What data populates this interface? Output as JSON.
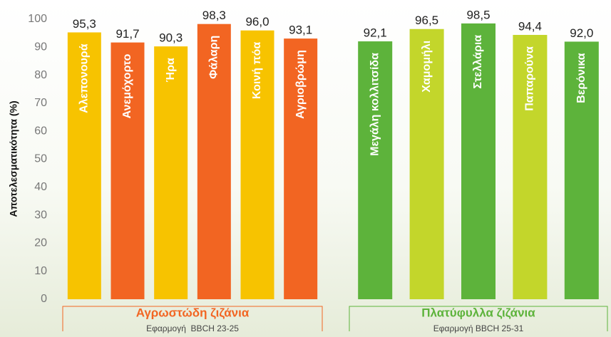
{
  "chart_data": {
    "type": "bar",
    "ylabel": "Αποτελεσματικότητα (%)",
    "ylim": [
      0,
      100
    ],
    "yticks": [
      0,
      10,
      20,
      30,
      40,
      50,
      60,
      70,
      80,
      90,
      100
    ],
    "groups": [
      {
        "title": "Αγρωστώδη ζιζάνια",
        "subtitle": "Εφαρμογή  BBCH 23-25",
        "color": "#f26522",
        "categories": [
          "Αλεπονουρά",
          "Ανεμόχορτο",
          "Ήρα",
          "Φάλαρη",
          "Κοινή πόα",
          "Αγριοβρώμη"
        ],
        "values": [
          95.3,
          91.7,
          90.3,
          98.3,
          96.0,
          93.1
        ],
        "value_labels": [
          "95,3",
          "91,7",
          "90,3",
          "98,3",
          "96,0",
          "93,1"
        ],
        "colors": [
          "#f7c300",
          "#f26522",
          "#f7c300",
          "#f26522",
          "#f7c300",
          "#f26522"
        ]
      },
      {
        "title": "Πλατύφυλλα ζιζάνια",
        "subtitle": "Εφαρμογή BBCH 25-31",
        "color": "#5db33b",
        "categories": [
          "Μεγάλη κολλιτσίδα",
          "Χαμομήλι",
          "Στελλάρια",
          "Παπαρούνα",
          "Βερόνικα"
        ],
        "values": [
          92.1,
          96.5,
          98.5,
          94.4,
          92.0
        ],
        "value_labels": [
          "92,1",
          "96,5",
          "98,5",
          "94,4",
          "92,0"
        ],
        "colors": [
          "#5db33b",
          "#c3d62b",
          "#5db33b",
          "#c3d62b",
          "#5db33b"
        ]
      }
    ]
  }
}
